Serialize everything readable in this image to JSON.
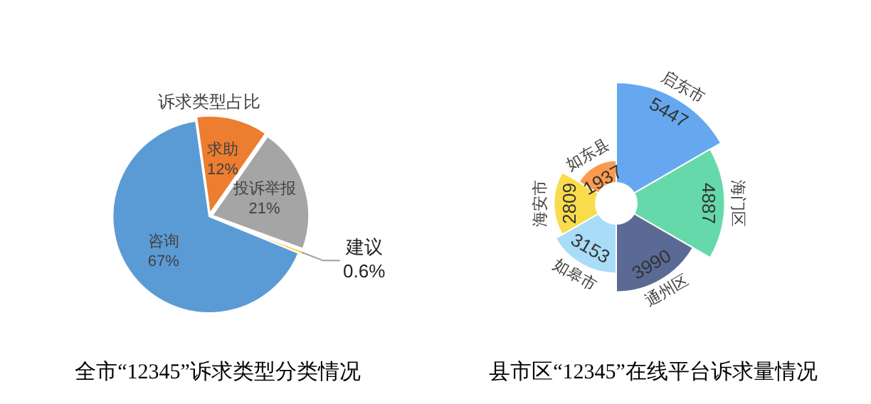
{
  "chart_data": [
    {
      "type": "pie",
      "title": "诉求类型占比",
      "categories": [
        "求助",
        "投诉举报",
        "建议",
        "咨询"
      ],
      "values": [
        12,
        21,
        0.6,
        67
      ],
      "colors": [
        "#ed7d31",
        "#a5a5a5",
        "#ffc000",
        "#5b9bd5"
      ],
      "value_labels": [
        "12%",
        "21%",
        "0.6%",
        "67%"
      ],
      "legend": false,
      "annotations": [
        "全市“12345”诉求类型分类情况"
      ]
    },
    {
      "type": "other",
      "title": "县市区“12345”在线平台诉求量情况",
      "categories": [
        "启东市",
        "海门区",
        "通州区",
        "如皋市",
        "海安市",
        "如东县"
      ],
      "values": [
        5447,
        4887,
        3990,
        3153,
        2809,
        1937
      ],
      "colors": [
        "#66a8f0",
        "#66d9aa",
        "#5b6a94",
        "#a8dcf7",
        "#f9dc4c",
        "#fa9a50"
      ],
      "data_labels": true,
      "legend": false
    }
  ]
}
